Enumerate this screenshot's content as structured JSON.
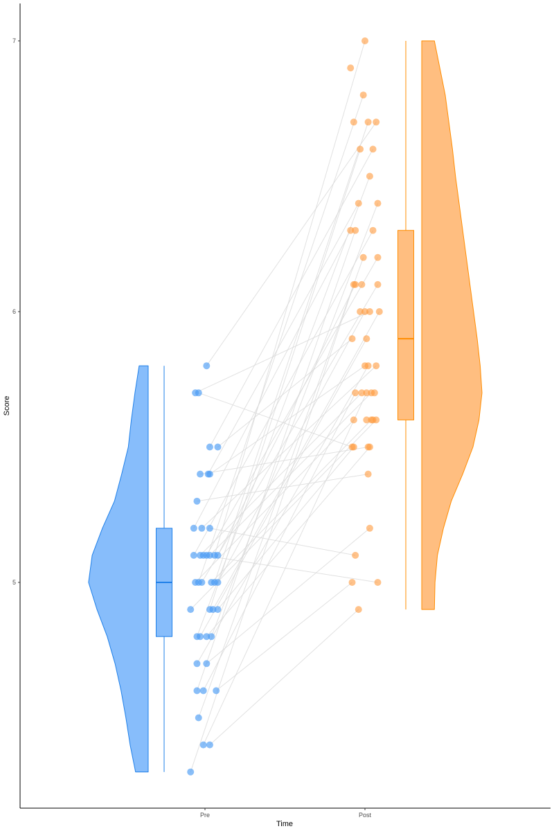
{
  "chart_data": {
    "type": "raincloud",
    "title": "",
    "xlabel": "Time",
    "ylabel": "Score",
    "categories": [
      "Pre",
      "Post"
    ],
    "y_ticks": [
      "5",
      "6",
      "7"
    ],
    "y_tick_values": [
      5,
      6,
      7
    ],
    "colors": {
      "Pre_fill": "#87BDFB",
      "Pre_line": "#1E7FE8",
      "Post_fill": "#FFBE80",
      "Post_line": "#FF8C00",
      "pair_line": "#d9d9d9"
    },
    "series": [
      {
        "name": "Pre",
        "box": {
          "min": 4.3,
          "q1": 4.8,
          "median": 5.0,
          "q3": 5.2,
          "max": 5.8
        },
        "density": [
          [
            5.8,
            0.15
          ],
          [
            5.7,
            0.22
          ],
          [
            5.6,
            0.28
          ],
          [
            5.5,
            0.33
          ],
          [
            5.4,
            0.44
          ],
          [
            5.3,
            0.56
          ],
          [
            5.2,
            0.76
          ],
          [
            5.1,
            0.93
          ],
          [
            5.0,
            0.99
          ],
          [
            4.9,
            0.85
          ],
          [
            4.8,
            0.68
          ],
          [
            4.7,
            0.55
          ],
          [
            4.6,
            0.45
          ],
          [
            4.5,
            0.37
          ],
          [
            4.4,
            0.3
          ],
          [
            4.3,
            0.21
          ]
        ],
        "points": [
          [
            5.8,
            0.01
          ],
          [
            5.7,
            -0.06
          ],
          [
            5.7,
            -0.04
          ],
          [
            5.5,
            0.03
          ],
          [
            5.5,
            0.08
          ],
          [
            5.4,
            -0.03
          ],
          [
            5.4,
            0.02
          ],
          [
            5.4,
            0.03
          ],
          [
            5.3,
            -0.05
          ],
          [
            5.2,
            -0.07
          ],
          [
            5.2,
            -0.02
          ],
          [
            5.2,
            0.03
          ],
          [
            5.1,
            -0.07
          ],
          [
            5.1,
            -0.03
          ],
          [
            5.1,
            -0.01
          ],
          [
            5.1,
            0.01
          ],
          [
            5.1,
            0.03
          ],
          [
            5.1,
            0.06
          ],
          [
            5.1,
            0.08
          ],
          [
            5.0,
            -0.06
          ],
          [
            5.0,
            -0.04
          ],
          [
            5.0,
            -0.02
          ],
          [
            5.0,
            0.04
          ],
          [
            5.0,
            0.06
          ],
          [
            5.0,
            0.08
          ],
          [
            4.9,
            -0.09
          ],
          [
            4.9,
            0.03
          ],
          [
            4.9,
            0.05
          ],
          [
            4.9,
            0.08
          ],
          [
            4.8,
            -0.05
          ],
          [
            4.8,
            -0.03
          ],
          [
            4.8,
            0.01
          ],
          [
            4.8,
            0.04
          ],
          [
            4.7,
            -0.05
          ],
          [
            4.7,
            0.01
          ],
          [
            4.6,
            -0.05
          ],
          [
            4.6,
            -0.01
          ],
          [
            4.6,
            0.07
          ],
          [
            4.5,
            -0.04
          ],
          [
            4.4,
            -0.01
          ],
          [
            4.4,
            0.03
          ],
          [
            4.3,
            -0.09
          ]
        ]
      },
      {
        "name": "Post",
        "box": {
          "min": 4.9,
          "q1": 5.6,
          "median": 5.9,
          "q3": 6.3,
          "max": 7.0
        },
        "density": [
          [
            7.0,
            0.21
          ],
          [
            6.9,
            0.3
          ],
          [
            6.8,
            0.39
          ],
          [
            6.7,
            0.45
          ],
          [
            6.6,
            0.51
          ],
          [
            6.5,
            0.56
          ],
          [
            6.4,
            0.62
          ],
          [
            6.3,
            0.68
          ],
          [
            6.2,
            0.74
          ],
          [
            6.1,
            0.8
          ],
          [
            6.0,
            0.86
          ],
          [
            5.9,
            0.92
          ],
          [
            5.8,
            0.97
          ],
          [
            5.7,
            1.0
          ],
          [
            5.6,
            0.95
          ],
          [
            5.5,
            0.85
          ],
          [
            5.4,
            0.68
          ],
          [
            5.3,
            0.49
          ],
          [
            5.2,
            0.36
          ],
          [
            5.1,
            0.26
          ],
          [
            5.0,
            0.22
          ],
          [
            4.9,
            0.21
          ]
        ],
        "points": [
          [
            7.0,
            0.0
          ],
          [
            6.9,
            -0.09
          ],
          [
            6.8,
            -0.01
          ],
          [
            6.7,
            -0.07
          ],
          [
            6.7,
            0.02
          ],
          [
            6.7,
            0.07
          ],
          [
            6.6,
            -0.03
          ],
          [
            6.6,
            0.05
          ],
          [
            6.5,
            0.03
          ],
          [
            6.4,
            -0.04
          ],
          [
            6.4,
            0.08
          ],
          [
            6.3,
            -0.09
          ],
          [
            6.3,
            -0.06
          ],
          [
            6.3,
            0.05
          ],
          [
            6.2,
            -0.01
          ],
          [
            6.2,
            0.08
          ],
          [
            6.1,
            -0.07
          ],
          [
            6.1,
            -0.06
          ],
          [
            6.1,
            -0.02
          ],
          [
            6.1,
            0.08
          ],
          [
            6.0,
            -0.03
          ],
          [
            6.0,
            0.0
          ],
          [
            6.0,
            0.03
          ],
          [
            6.0,
            0.09
          ],
          [
            5.9,
            -0.08
          ],
          [
            5.9,
            0.01
          ],
          [
            5.8,
            0.0
          ],
          [
            5.8,
            0.02
          ],
          [
            5.8,
            0.07
          ],
          [
            5.7,
            -0.06
          ],
          [
            5.7,
            -0.02
          ],
          [
            5.7,
            0.01
          ],
          [
            5.7,
            0.04
          ],
          [
            5.7,
            0.06
          ],
          [
            5.6,
            -0.07
          ],
          [
            5.6,
            0.01
          ],
          [
            5.6,
            0.04
          ],
          [
            5.6,
            0.05
          ],
          [
            5.6,
            0.07
          ],
          [
            5.5,
            -0.08
          ],
          [
            5.5,
            -0.07
          ],
          [
            5.5,
            0.02
          ],
          [
            5.5,
            0.03
          ],
          [
            5.4,
            0.02
          ],
          [
            5.2,
            0.03
          ],
          [
            5.1,
            -0.06
          ],
          [
            5.0,
            -0.08
          ],
          [
            5.0,
            0.08
          ],
          [
            4.9,
            -0.04
          ]
        ]
      }
    ]
  }
}
